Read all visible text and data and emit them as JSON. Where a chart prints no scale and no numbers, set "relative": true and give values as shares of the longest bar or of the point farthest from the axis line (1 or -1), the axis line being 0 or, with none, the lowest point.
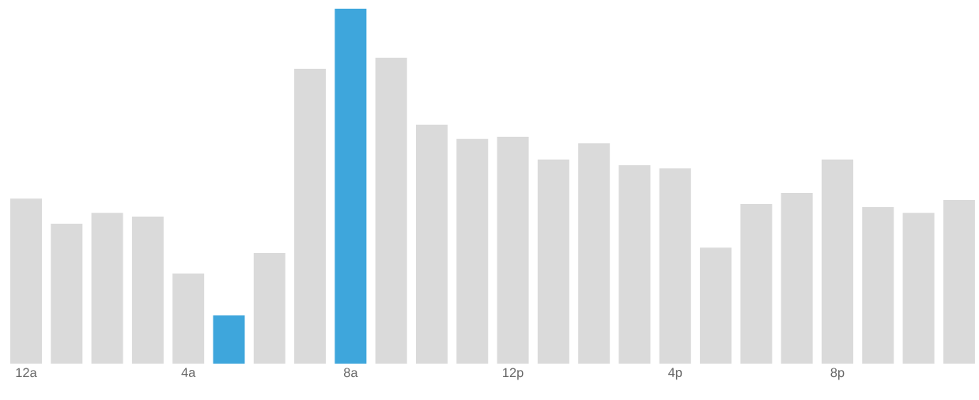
{
  "chart_data": {
    "type": "bar",
    "relative": true,
    "categories": [
      "12a",
      null,
      null,
      null,
      "4a",
      null,
      null,
      null,
      "8a",
      null,
      null,
      null,
      "12p",
      null,
      null,
      null,
      "4p",
      null,
      null,
      null,
      "8p",
      null,
      null,
      null
    ],
    "values": [
      0.465,
      0.394,
      0.425,
      0.414,
      0.254,
      0.136,
      0.312,
      0.831,
      1,
      0.862,
      0.673,
      0.633,
      0.639,
      0.575,
      0.621,
      0.559,
      0.55,
      0.327,
      0.45,
      0.481,
      0.575,
      0.441,
      0.425,
      0.461
    ],
    "colors": [
      "#dadada",
      "#dadada",
      "#dadada",
      "#dadada",
      "#dadada",
      "#3ea6dc",
      "#dadada",
      "#dadada",
      "#3ea6dc",
      "#dadada",
      "#dadada",
      "#dadada",
      "#dadada",
      "#dadada",
      "#dadada",
      "#dadada",
      "#dadada",
      "#dadada",
      "#dadada",
      "#dadada",
      "#dadada",
      "#dadada",
      "#dadada",
      "#dadada"
    ]
  }
}
